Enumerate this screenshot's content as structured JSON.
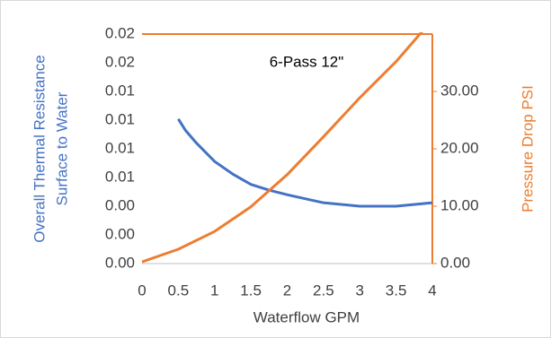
{
  "chart_data": {
    "type": "line",
    "annotation": "6-Pass 12\"",
    "xlabel": "Waterflow GPM",
    "ylabel": [
      "Overall Thermal Resistance",
      "Surface to Water"
    ],
    "y2label": "Pressure Drop PSI",
    "xlim": [
      0,
      4
    ],
    "xticks": [
      0,
      0.5,
      1,
      1.5,
      2,
      2.5,
      3,
      3.5,
      4
    ],
    "ylim": [
      0,
      0.02
    ],
    "yticks": [
      {
        "value": 0,
        "label": "0.00"
      },
      {
        "value": 0.0025,
        "label": "0.00"
      },
      {
        "value": 0.005,
        "label": "0.00"
      },
      {
        "value": 0.0075,
        "label": "0.01"
      },
      {
        "value": 0.01,
        "label": "0.01"
      },
      {
        "value": 0.0125,
        "label": "0.01"
      },
      {
        "value": 0.015,
        "label": "0.01"
      },
      {
        "value": 0.0175,
        "label": "0.02"
      },
      0.02
    ],
    "y2lim": [
      0,
      40
    ],
    "y2ticks": [
      {
        "value": 0,
        "label": "0.00"
      },
      {
        "value": 10,
        "label": "10.00"
      },
      {
        "value": 20,
        "label": "20.00"
      },
      {
        "value": 30,
        "label": "30.00"
      }
    ],
    "series": [
      {
        "color": "#4472c4",
        "axis": "y",
        "x": [
          0.5,
          0.6,
          0.75,
          1,
          1.25,
          1.5,
          1.75,
          2,
          2.5,
          3,
          3.5,
          4
        ],
        "values": [
          0.0126,
          0.0116,
          0.0105,
          0.0089,
          0.0078,
          0.0069,
          0.0064,
          0.006,
          0.0053,
          0.005,
          0.005,
          0.0053
        ]
      },
      {
        "color": "#ed7d31",
        "axis": "y2",
        "x": [
          0,
          0.5,
          1,
          1.5,
          2,
          2.5,
          3,
          3.5,
          4
        ],
        "values": [
          0.3,
          2.5,
          5.6,
          9.9,
          15.5,
          22.1,
          28.9,
          35.2,
          42.5
        ]
      }
    ]
  }
}
